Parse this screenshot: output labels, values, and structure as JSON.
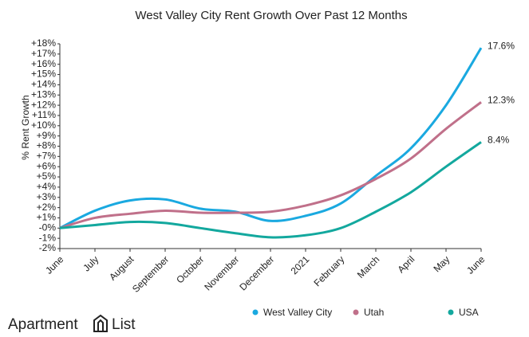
{
  "chart_data": {
    "type": "line",
    "title": "West Valley City Rent Growth Over Past 12 Months",
    "y_label": "% Rent Growth",
    "categories": [
      "June",
      "July",
      "August",
      "September",
      "October",
      "November",
      "December",
      "2021",
      "February",
      "March",
      "April",
      "May",
      "June"
    ],
    "series": [
      {
        "name": "West Valley City",
        "color": "#1aa9e0",
        "values": [
          0,
          1.7,
          2.7,
          2.8,
          1.9,
          1.6,
          0.7,
          1.2,
          2.4,
          5.1,
          7.8,
          12.0,
          17.6
        ],
        "value_labels": [
          null,
          null,
          null,
          null,
          null,
          null,
          null,
          null,
          null,
          null,
          null,
          null,
          "17.6%"
        ]
      },
      {
        "name": "Utah",
        "color": "#c0708a",
        "values": [
          0,
          1.0,
          1.4,
          1.7,
          1.5,
          1.5,
          1.6,
          2.2,
          3.2,
          4.8,
          6.8,
          9.7,
          12.3
        ],
        "value_labels": [
          null,
          null,
          null,
          null,
          null,
          null,
          null,
          null,
          null,
          null,
          null,
          null,
          "12.3%"
        ]
      },
      {
        "name": "USA",
        "color": "#13a89e",
        "values": [
          0,
          0.3,
          0.6,
          0.5,
          0.0,
          -0.5,
          -0.9,
          -0.7,
          0.0,
          1.6,
          3.5,
          6.0,
          8.4
        ],
        "value_labels": [
          null,
          null,
          null,
          null,
          null,
          null,
          null,
          null,
          null,
          null,
          null,
          null,
          "8.4%"
        ]
      }
    ],
    "ylim": [
      -2,
      18
    ],
    "yticks": [
      {
        "value": -2,
        "label": "-2%"
      },
      {
        "value": -1,
        "label": "-1%"
      },
      {
        "value": 0,
        "label": "-0%"
      },
      {
        "value": 1,
        "label": "+1%"
      },
      {
        "value": 2,
        "label": "+2%"
      },
      {
        "value": 3,
        "label": "+3%"
      },
      {
        "value": 4,
        "label": "+4%"
      },
      {
        "value": 5,
        "label": "+5%"
      },
      {
        "value": 6,
        "label": "+6%"
      },
      {
        "value": 7,
        "label": "+7%"
      },
      {
        "value": 8,
        "label": "+8%"
      },
      {
        "value": 9,
        "label": "+9%"
      },
      {
        "value": 10,
        "label": "+10%"
      },
      {
        "value": 11,
        "label": "+11%"
      },
      {
        "value": 12,
        "label": "+12%"
      },
      {
        "value": 13,
        "label": "+13%"
      },
      {
        "value": 14,
        "label": "+14%"
      },
      {
        "value": 15,
        "label": "+15%"
      },
      {
        "value": 16,
        "label": "+16%"
      },
      {
        "value": 17,
        "label": "+17%"
      },
      {
        "value": 18,
        "label": "+18%"
      }
    ],
    "grid": false,
    "legend": "bottom-right"
  },
  "logo": {
    "left": "Apartment",
    "right": "List"
  }
}
